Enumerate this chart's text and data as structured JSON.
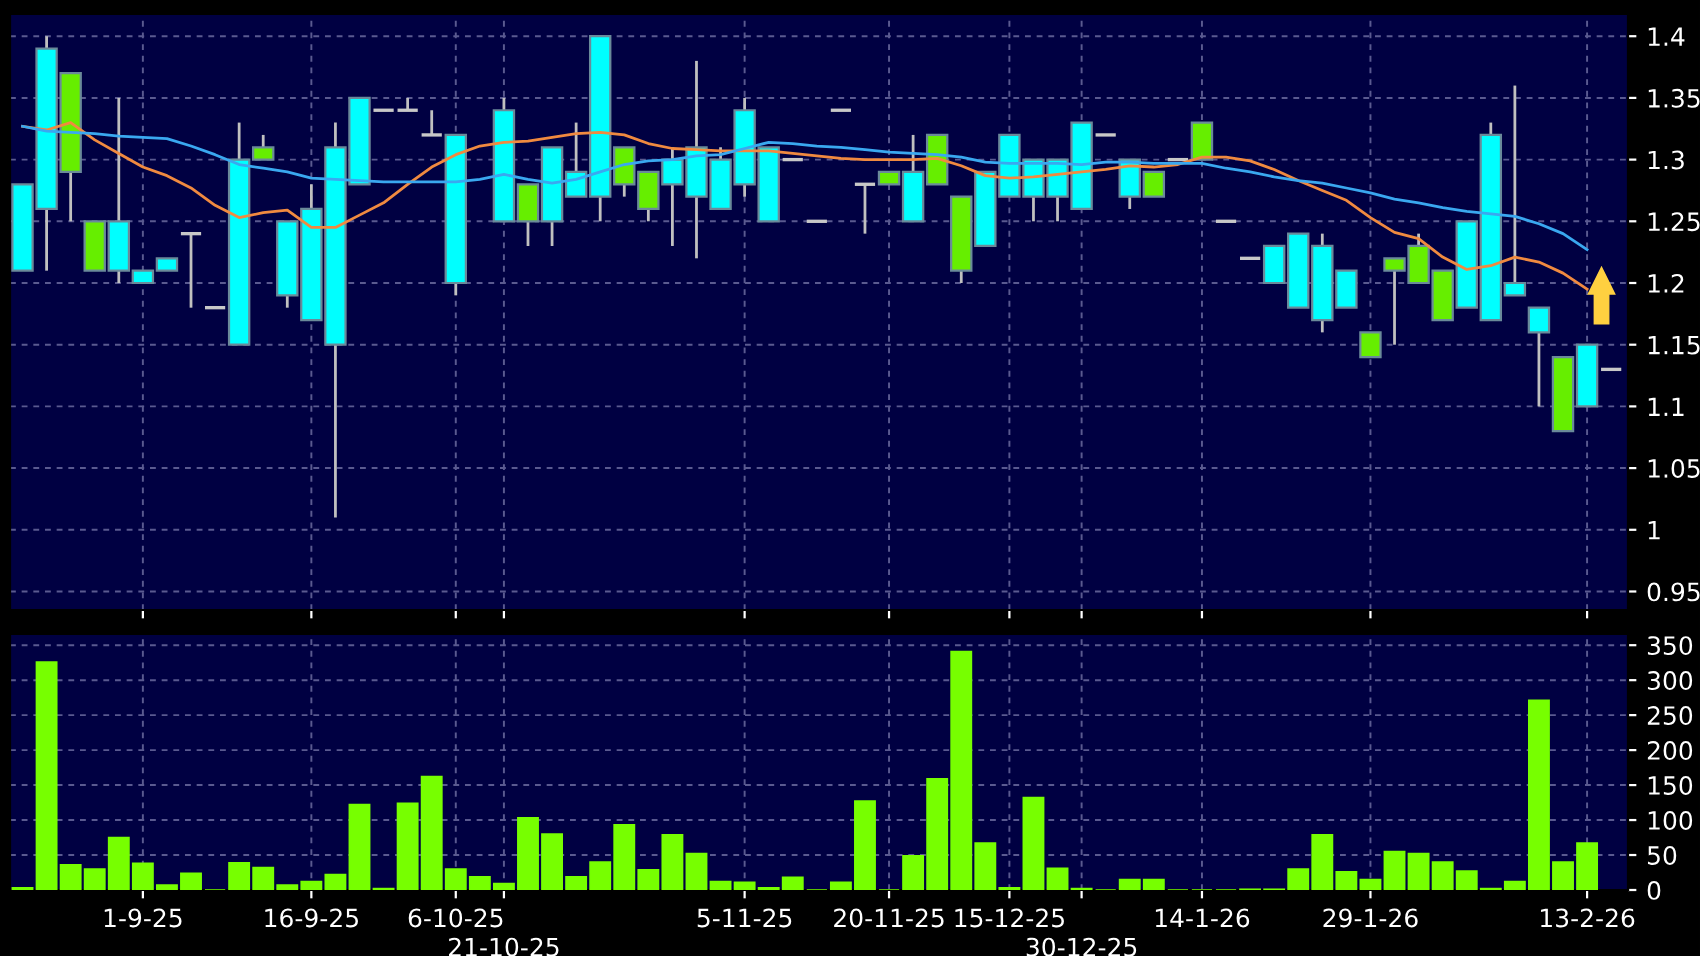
{
  "chart_data": [
    {
      "type": "candlestick",
      "categories": [
        null,
        null,
        null,
        null,
        null,
        null,
        null,
        null,
        null,
        null,
        null,
        null,
        null,
        null,
        null,
        null,
        null,
        null,
        null,
        null,
        null,
        null,
        null,
        null,
        null,
        null,
        null,
        null,
        null,
        null,
        null,
        null,
        null,
        null,
        null,
        null,
        null,
        null,
        null,
        null,
        null,
        null,
        null,
        null,
        null,
        null,
        null,
        null,
        null,
        null,
        null,
        null,
        null,
        null,
        null,
        null,
        null,
        null,
        null,
        null,
        null,
        null,
        null,
        null,
        null,
        null,
        null
      ],
      "ohlc": [
        [
          1.21,
          1.28,
          1.21,
          1.28
        ],
        [
          1.26,
          1.4,
          1.21,
          1.39
        ],
        [
          1.37,
          1.37,
          1.25,
          1.29
        ],
        [
          1.25,
          1.25,
          1.21,
          1.21
        ],
        [
          1.21,
          1.35,
          1.2,
          1.25
        ],
        [
          1.2,
          1.21,
          1.2,
          1.21
        ],
        [
          1.21,
          1.22,
          1.21,
          1.22
        ],
        [
          1.24,
          1.24,
          1.18,
          1.24
        ],
        [
          1.18,
          1.18,
          1.18,
          1.18
        ],
        [
          1.15,
          1.33,
          1.15,
          1.3
        ],
        [
          1.31,
          1.32,
          1.3,
          1.3
        ],
        [
          1.19,
          1.25,
          1.18,
          1.25
        ],
        [
          1.17,
          1.28,
          1.17,
          1.26
        ],
        [
          1.15,
          1.33,
          1.01,
          1.31
        ],
        [
          1.28,
          1.35,
          1.28,
          1.35
        ],
        [
          1.34,
          1.34,
          1.34,
          1.34
        ],
        [
          1.34,
          1.35,
          1.34,
          1.34
        ],
        [
          1.32,
          1.34,
          1.32,
          1.32
        ],
        [
          1.2,
          1.32,
          1.19,
          1.32
        ],
        null,
        [
          1.25,
          1.35,
          1.25,
          1.34
        ],
        [
          1.28,
          1.28,
          1.23,
          1.25
        ],
        [
          1.25,
          1.31,
          1.23,
          1.31
        ],
        [
          1.27,
          1.33,
          1.27,
          1.29
        ],
        [
          1.27,
          1.4,
          1.25,
          1.4
        ],
        [
          1.31,
          1.31,
          1.27,
          1.28
        ],
        [
          1.29,
          1.29,
          1.25,
          1.26
        ],
        [
          1.28,
          1.31,
          1.23,
          1.3
        ],
        [
          1.27,
          1.38,
          1.22,
          1.31
        ],
        [
          1.26,
          1.31,
          1.26,
          1.3
        ],
        [
          1.28,
          1.35,
          1.27,
          1.34
        ],
        [
          1.25,
          1.31,
          1.25,
          1.31
        ],
        [
          1.3,
          1.3,
          1.3,
          1.3
        ],
        [
          1.25,
          1.25,
          1.25,
          1.25
        ],
        [
          1.34,
          1.34,
          1.34,
          1.34
        ],
        [
          1.28,
          1.28,
          1.24,
          1.28
        ],
        [
          1.29,
          1.29,
          1.28,
          1.28
        ],
        [
          1.25,
          1.32,
          1.25,
          1.29
        ],
        [
          1.32,
          1.32,
          1.28,
          1.28
        ],
        [
          1.27,
          1.27,
          1.2,
          1.21
        ],
        [
          1.23,
          1.29,
          1.23,
          1.29
        ],
        [
          1.27,
          1.32,
          1.27,
          1.32
        ],
        [
          1.27,
          1.3,
          1.25,
          1.3
        ],
        [
          1.27,
          1.3,
          1.25,
          1.3
        ],
        [
          1.26,
          1.33,
          1.26,
          1.33
        ],
        [
          1.32,
          1.32,
          1.32,
          1.32
        ],
        [
          1.27,
          1.3,
          1.26,
          1.3
        ],
        [
          1.29,
          1.29,
          1.27,
          1.27
        ],
        [
          1.3,
          1.3,
          1.3,
          1.3
        ],
        [
          1.33,
          1.33,
          1.3,
          1.3
        ],
        [
          1.25,
          1.25,
          1.25,
          1.25
        ],
        [
          1.22,
          1.22,
          1.22,
          1.22
        ],
        [
          1.2,
          1.23,
          1.2,
          1.23
        ],
        [
          1.18,
          1.24,
          1.18,
          1.24
        ],
        [
          1.17,
          1.24,
          1.16,
          1.23
        ],
        [
          1.18,
          1.21,
          1.18,
          1.21
        ],
        [
          1.16,
          1.16,
          1.14,
          1.14
        ],
        [
          1.22,
          1.22,
          1.15,
          1.21
        ],
        [
          1.23,
          1.24,
          1.2,
          1.2
        ],
        [
          1.21,
          1.21,
          1.17,
          1.17
        ],
        [
          1.18,
          1.25,
          1.18,
          1.25
        ],
        [
          1.17,
          1.33,
          1.17,
          1.32
        ],
        [
          1.19,
          1.36,
          1.19,
          1.2
        ],
        [
          1.16,
          1.18,
          1.1,
          1.18
        ],
        [
          1.14,
          1.14,
          1.08,
          1.08
        ],
        [
          1.1,
          1.15,
          1.1,
          1.15
        ],
        [
          1.13,
          1.13,
          1.13,
          1.13
        ]
      ],
      "colors": [
        "#00ffff",
        "#00ffff",
        "#66ee00",
        "#66ee00",
        "#00ffff",
        "#00ffff",
        "#00ffff",
        "#c8c8c8",
        "#c8c8c8",
        "#00ffff",
        "#66ee00",
        "#00ffff",
        "#00ffff",
        "#00ffff",
        "#00ffff",
        "#c8c8c8",
        "#c8c8c8",
        "#c8c8c8",
        "#00ffff",
        null,
        "#00ffff",
        "#66ee00",
        "#00ffff",
        "#00ffff",
        "#00ffff",
        "#66ee00",
        "#66ee00",
        "#00ffff",
        "#00ffff",
        "#00ffff",
        "#00ffff",
        "#00ffff",
        "#c8c8c8",
        "#c8c8c8",
        "#c8c8c8",
        "#c8c8c8",
        "#66ee00",
        "#00ffff",
        "#66ee00",
        "#66ee00",
        "#00ffff",
        "#00ffff",
        "#00ffff",
        "#00ffff",
        "#00ffff",
        "#c8c8c8",
        "#00ffff",
        "#66ee00",
        "#c8c8c8",
        "#66ee00",
        "#c8c8c8",
        "#c8c8c8",
        "#00ffff",
        "#00ffff",
        "#00ffff",
        "#00ffff",
        "#66ee00",
        "#66ee00",
        "#66ee00",
        "#66ee00",
        "#00ffff",
        "#00ffff",
        "#00ffff",
        "#00ffff",
        "#66ee00",
        "#00ffff",
        "#c8c8c8"
      ],
      "series": [
        {
          "type": "line",
          "color": "#f08a40",
          "values": [
            1.327,
            1.324,
            1.33,
            1.316,
            1.305,
            1.294,
            1.287,
            1.277,
            1.263,
            1.253,
            1.257,
            1.259,
            1.245,
            1.245,
            1.255,
            1.265,
            1.28,
            1.294,
            1.304,
            1.311,
            1.314,
            1.315,
            1.318,
            1.321,
            1.322,
            1.32,
            1.313,
            1.309,
            1.308,
            1.307,
            1.307,
            1.307,
            1.305,
            1.303,
            1.301,
            1.3,
            1.3,
            1.3,
            1.301,
            1.295,
            1.287,
            1.285,
            1.286,
            1.288,
            1.29,
            1.292,
            1.295,
            1.294,
            1.296,
            1.302,
            1.302,
            1.299,
            1.292,
            1.283,
            1.275,
            1.267,
            1.253,
            1.241,
            1.236,
            1.221,
            1.211,
            1.214,
            1.221,
            1.217,
            1.208,
            1.195,
            null
          ]
        },
        {
          "type": "line",
          "color": "#3aa8f0",
          "values": [
            1.327,
            1.323,
            1.322,
            1.321,
            1.319,
            1.318,
            1.317,
            1.311,
            1.304,
            1.296,
            1.293,
            1.29,
            1.285,
            1.284,
            1.283,
            1.282,
            1.282,
            1.282,
            1.282,
            1.284,
            1.288,
            1.284,
            1.281,
            1.284,
            1.29,
            1.296,
            1.299,
            1.3,
            1.303,
            1.304,
            1.309,
            1.314,
            1.313,
            1.311,
            1.31,
            1.308,
            1.306,
            1.305,
            1.304,
            1.302,
            1.298,
            1.297,
            1.297,
            1.297,
            1.296,
            1.298,
            1.298,
            1.297,
            1.297,
            1.297,
            1.293,
            1.29,
            1.286,
            1.283,
            1.281,
            1.277,
            1.273,
            1.268,
            1.265,
            1.261,
            1.258,
            1.256,
            1.254,
            1.248,
            1.24,
            1.227,
            null
          ]
        }
      ],
      "ylim": [
        0.935,
        1.418
      ],
      "yticks": [
        0.95,
        1,
        1.05,
        1.1,
        1.15,
        1.2,
        1.25,
        1.3,
        1.35,
        1.4
      ],
      "grid": true,
      "tick_labels": "y"
    },
    {
      "type": "bar",
      "categories": [
        null,
        null,
        null,
        null,
        null,
        "1-9-25",
        null,
        null,
        null,
        null,
        null,
        null,
        "16-9-25",
        null,
        null,
        null,
        null,
        null,
        "6-10-25",
        null,
        "21-10-25",
        null,
        null,
        null,
        null,
        null,
        null,
        null,
        null,
        null,
        "5-11-25",
        null,
        null,
        null,
        null,
        null,
        "20-11-25",
        null,
        null,
        null,
        null,
        "15-12-25",
        null,
        null,
        "30-12-25",
        null,
        null,
        null,
        null,
        "14-1-26",
        null,
        null,
        null,
        null,
        null,
        null,
        "29-1-26",
        null,
        null,
        null,
        null,
        null,
        null,
        null,
        null,
        "13-2-26",
        null
      ],
      "values": [
        3,
        326,
        36,
        30,
        75,
        38,
        7,
        24,
        0,
        39,
        32,
        7,
        12,
        22,
        122,
        2,
        124,
        162,
        30,
        19,
        9,
        103,
        80,
        19,
        40,
        93,
        29,
        79,
        52,
        12,
        11,
        3,
        18,
        0,
        11,
        127,
        0,
        49,
        159,
        341,
        67,
        3,
        132,
        31,
        2,
        0,
        15,
        15,
        0,
        0,
        0,
        1,
        1,
        30,
        79,
        26,
        15,
        55,
        52,
        40,
        27,
        2,
        12,
        271,
        40,
        67,
        null
      ],
      "color": "#77ff00",
      "ylim": [
        0,
        366
      ],
      "yticks": [
        0,
        50,
        100,
        150,
        200,
        250,
        300,
        350
      ],
      "grid": true
    }
  ]
}
